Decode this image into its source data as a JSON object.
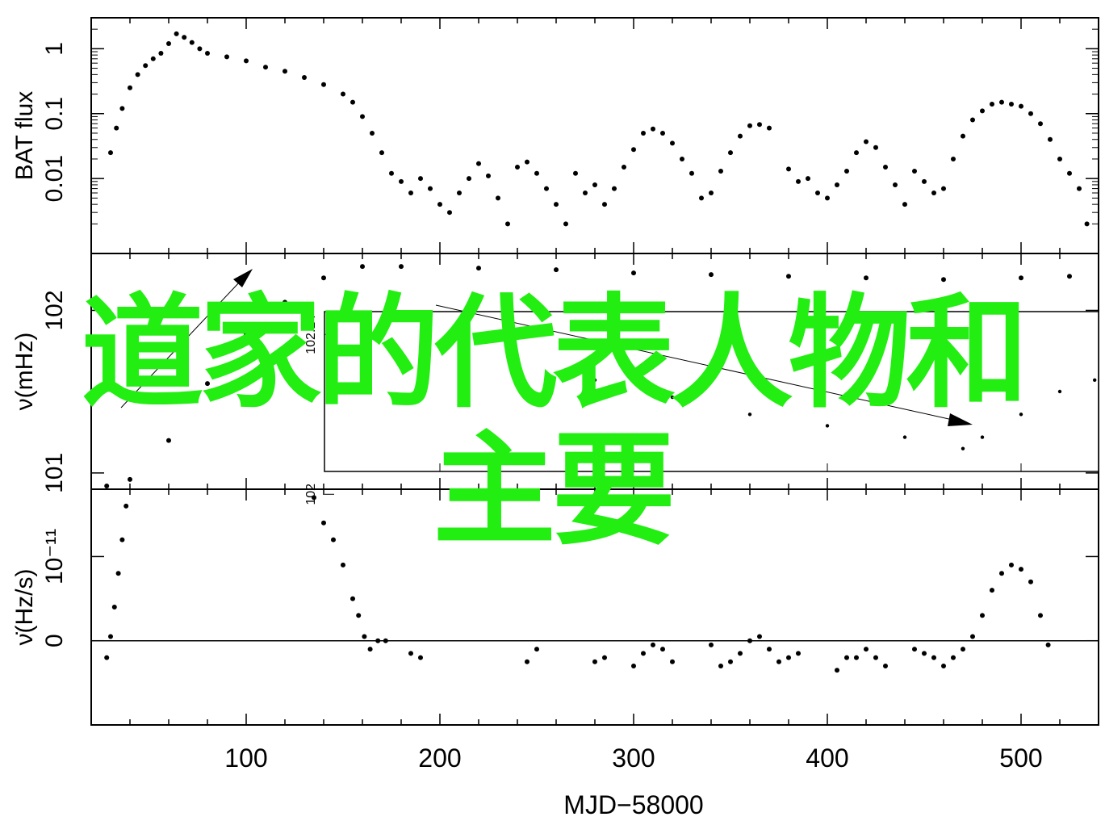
{
  "overlay": {
    "line1": "道家的代表人物和",
    "line2": "主要",
    "color": "#22ee11"
  },
  "chart_data": {
    "type": "scatter",
    "xlabel": "MJD−58000",
    "xlim": [
      20,
      540
    ],
    "xticks": [
      "100",
      "200",
      "300",
      "400",
      "500"
    ],
    "panels": [
      {
        "name": "flux",
        "ylabel": "BAT flux",
        "yscale": "log",
        "ylim": [
          0.0007,
          3
        ],
        "yticks": [
          "0.01",
          "0.1",
          "1"
        ],
        "points": [
          [
            30,
            0.025
          ],
          [
            33,
            0.06
          ],
          [
            36,
            0.12
          ],
          [
            40,
            0.25
          ],
          [
            44,
            0.4
          ],
          [
            48,
            0.55
          ],
          [
            52,
            0.7
          ],
          [
            56,
            0.85
          ],
          [
            60,
            1.2
          ],
          [
            64,
            1.7
          ],
          [
            68,
            1.5
          ],
          [
            72,
            1.25
          ],
          [
            76,
            1.0
          ],
          [
            80,
            0.85
          ],
          [
            90,
            0.75
          ],
          [
            100,
            0.65
          ],
          [
            110,
            0.52
          ],
          [
            120,
            0.45
          ],
          [
            130,
            0.36
          ],
          [
            140,
            0.28
          ],
          [
            150,
            0.2
          ],
          [
            155,
            0.15
          ],
          [
            160,
            0.09
          ],
          [
            165,
            0.05
          ],
          [
            170,
            0.025
          ],
          [
            175,
            0.012
          ],
          [
            180,
            0.009
          ],
          [
            185,
            0.006
          ],
          [
            190,
            0.01
          ],
          [
            195,
            0.007
          ],
          [
            200,
            0.004
          ],
          [
            205,
            0.003
          ],
          [
            210,
            0.006
          ],
          [
            215,
            0.01
          ],
          [
            220,
            0.017
          ],
          [
            225,
            0.011
          ],
          [
            230,
            0.005
          ],
          [
            235,
            0.002
          ],
          [
            240,
            0.015
          ],
          [
            245,
            0.018
          ],
          [
            250,
            0.012
          ],
          [
            255,
            0.007
          ],
          [
            260,
            0.004
          ],
          [
            265,
            0.002
          ],
          [
            270,
            0.012
          ],
          [
            275,
            0.006
          ],
          [
            280,
            0.008
          ],
          [
            285,
            0.004
          ],
          [
            290,
            0.007
          ],
          [
            295,
            0.015
          ],
          [
            300,
            0.028
          ],
          [
            305,
            0.05
          ],
          [
            310,
            0.058
          ],
          [
            315,
            0.05
          ],
          [
            320,
            0.035
          ],
          [
            325,
            0.02
          ],
          [
            330,
            0.012
          ],
          [
            335,
            0.005
          ],
          [
            340,
            0.006
          ],
          [
            345,
            0.013
          ],
          [
            350,
            0.025
          ],
          [
            355,
            0.045
          ],
          [
            360,
            0.065
          ],
          [
            365,
            0.068
          ],
          [
            370,
            0.06
          ],
          [
            380,
            0.014
          ],
          [
            385,
            0.009
          ],
          [
            390,
            0.01
          ],
          [
            395,
            0.006
          ],
          [
            400,
            0.005
          ],
          [
            405,
            0.008
          ],
          [
            410,
            0.013
          ],
          [
            415,
            0.025
          ],
          [
            420,
            0.037
          ],
          [
            425,
            0.03
          ],
          [
            430,
            0.015
          ],
          [
            435,
            0.008
          ],
          [
            440,
            0.004
          ],
          [
            445,
            0.013
          ],
          [
            450,
            0.009
          ],
          [
            455,
            0.006
          ],
          [
            460,
            0.007
          ],
          [
            465,
            0.02
          ],
          [
            470,
            0.045
          ],
          [
            475,
            0.08
          ],
          [
            480,
            0.11
          ],
          [
            485,
            0.14
          ],
          [
            490,
            0.15
          ],
          [
            495,
            0.14
          ],
          [
            500,
            0.13
          ],
          [
            505,
            0.1
          ],
          [
            510,
            0.07
          ],
          [
            515,
            0.04
          ],
          [
            520,
            0.02
          ],
          [
            525,
            0.012
          ],
          [
            530,
            0.007
          ],
          [
            534,
            0.002
          ]
        ]
      },
      {
        "name": "frequency",
        "ylabel": "ν(mHz)",
        "ylim": [
          100.9,
          102.35
        ],
        "yticks": [
          "101",
          "102"
        ],
        "points": [
          [
            28,
            100.92
          ],
          [
            40,
            100.96
          ],
          [
            60,
            101.2
          ],
          [
            80,
            101.55
          ],
          [
            100,
            101.85
          ],
          [
            120,
            102.05
          ],
          [
            140,
            102.2
          ],
          [
            160,
            102.27
          ],
          [
            180,
            102.27
          ],
          [
            220,
            102.26
          ],
          [
            260,
            102.25
          ],
          [
            300,
            102.23
          ],
          [
            340,
            102.22
          ],
          [
            380,
            102.21
          ],
          [
            420,
            102.2
          ],
          [
            460,
            102.19
          ],
          [
            500,
            102.2
          ],
          [
            525,
            102.21
          ]
        ],
        "inset": {
          "yticks": [
            "102",
            "102.14"
          ],
          "points": [
            [
              160,
              102.14
            ],
            [
              200,
              102.13
            ],
            [
              240,
              102.12
            ],
            [
              280,
              102.1
            ],
            [
              320,
              102.085
            ],
            [
              360,
              102.07
            ],
            [
              400,
              102.06
            ],
            [
              440,
              102.05
            ],
            [
              470,
              102.04
            ],
            [
              480,
              102.05
            ],
            [
              500,
              102.07
            ],
            [
              520,
              102.09
            ],
            [
              538,
              102.1
            ]
          ]
        }
      },
      {
        "name": "fdot",
        "ylabel": "ν̇(Hz/s)",
        "ylim": [
          -10,
          18
        ],
        "yticks": [
          "0",
          "10⁻¹¹"
        ],
        "points": [
          [
            28,
            -2
          ],
          [
            30,
            0.5
          ],
          [
            32,
            4
          ],
          [
            34,
            8
          ],
          [
            36,
            12
          ],
          [
            38,
            16
          ],
          [
            40,
            19
          ],
          [
            130,
            19
          ],
          [
            135,
            17
          ],
          [
            140,
            14
          ],
          [
            145,
            12
          ],
          [
            150,
            9
          ],
          [
            155,
            5
          ],
          [
            158,
            3
          ],
          [
            161,
            0.5
          ],
          [
            164,
            -1
          ],
          [
            168,
            0
          ],
          [
            172,
            0
          ],
          [
            185,
            -1.5
          ],
          [
            190,
            -2
          ],
          [
            245,
            -2.5
          ],
          [
            250,
            -1
          ],
          [
            280,
            -2.5
          ],
          [
            285,
            -2
          ],
          [
            300,
            -3
          ],
          [
            305,
            -1.5
          ],
          [
            310,
            -0.5
          ],
          [
            315,
            -1
          ],
          [
            320,
            -2.5
          ],
          [
            340,
            -0.5
          ],
          [
            345,
            -3
          ],
          [
            350,
            -2.5
          ],
          [
            355,
            -1.5
          ],
          [
            360,
            0
          ],
          [
            365,
            0.5
          ],
          [
            370,
            -1
          ],
          [
            375,
            -2.5
          ],
          [
            380,
            -2
          ],
          [
            385,
            -1.5
          ],
          [
            405,
            -3.5
          ],
          [
            410,
            -2
          ],
          [
            415,
            -2
          ],
          [
            420,
            -1
          ],
          [
            425,
            -2
          ],
          [
            430,
            -3
          ],
          [
            445,
            -1
          ],
          [
            450,
            -1.5
          ],
          [
            455,
            -2
          ],
          [
            460,
            -3
          ],
          [
            465,
            -2
          ],
          [
            470,
            -1
          ],
          [
            475,
            0.5
          ],
          [
            480,
            3
          ],
          [
            485,
            6
          ],
          [
            490,
            8
          ],
          [
            495,
            9
          ],
          [
            500,
            8.5
          ],
          [
            505,
            7
          ],
          [
            510,
            3
          ],
          [
            514,
            -0.5
          ]
        ]
      }
    ]
  }
}
